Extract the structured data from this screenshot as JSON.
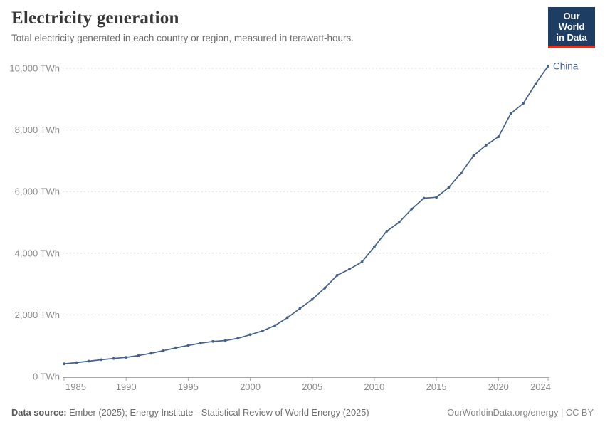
{
  "header": {
    "title": "Electricity generation",
    "subtitle": "Total electricity generated in each country or region, measured in terawatt-hours.",
    "logo_line1": "Our World",
    "logo_line2": "in Data"
  },
  "chart_data": {
    "type": "line",
    "title": "Electricity generation",
    "xlabel": "",
    "ylabel": "TWh",
    "grid": "horizontal-dashed",
    "legend_position": "end-of-line-label",
    "xlim": [
      1985,
      2024
    ],
    "ylim": [
      0,
      10400
    ],
    "x_ticks": [
      1985,
      1990,
      1995,
      2000,
      2005,
      2010,
      2015,
      2020,
      2024
    ],
    "y_ticks": [
      0,
      2000,
      4000,
      6000,
      8000,
      10000
    ],
    "y_tick_suffix": " TWh",
    "series": [
      {
        "name": "China",
        "color": "#44618c",
        "x": [
          1985,
          1986,
          1987,
          1988,
          1989,
          1990,
          1991,
          1992,
          1993,
          1994,
          1995,
          1996,
          1997,
          1998,
          1999,
          2000,
          2001,
          2002,
          2003,
          2004,
          2005,
          2006,
          2007,
          2008,
          2009,
          2010,
          2011,
          2012,
          2013,
          2014,
          2015,
          2016,
          2017,
          2018,
          2019,
          2020,
          2021,
          2022,
          2023,
          2024
        ],
        "values": [
          411,
          450,
          497,
          545,
          585,
          621,
          678,
          754,
          839,
          928,
          1008,
          1081,
          1136,
          1167,
          1239,
          1356,
          1481,
          1654,
          1911,
          2203,
          2500,
          2866,
          3282,
          3482,
          3715,
          4207,
          4713,
          5002,
          5432,
          5785,
          5815,
          6133,
          6604,
          7166,
          7503,
          7779,
          8534,
          8858,
          9500,
          10070
        ]
      }
    ]
  },
  "footer": {
    "source_label": "Data source:",
    "source_rest": "Ember (2025); Energy Institute - Statistical Review of World Energy (2025)",
    "credit": "OurWorldinData.org/energy | CC BY"
  },
  "colors": {
    "line": "#44618c",
    "grid": "#dcdcdc",
    "axis": "#a8a8a8",
    "tick_text": "#8a8a8a",
    "title": "#373737",
    "subtitle": "#6c6c6c",
    "logo_bg": "#1d3d63",
    "logo_stripe": "#dd3424"
  }
}
